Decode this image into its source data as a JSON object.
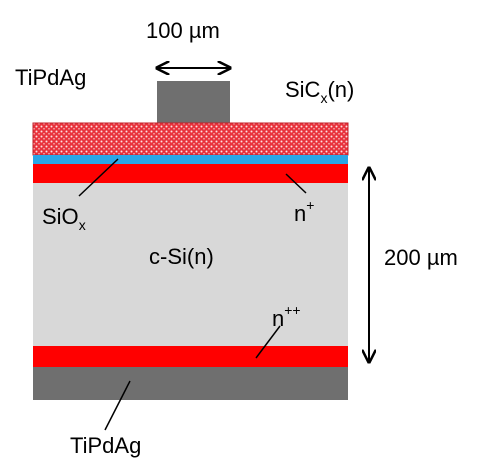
{
  "labels": {
    "top_contact": "TiPdAg",
    "contact_width": "100 µm",
    "sic_base": "SiC",
    "sic_sub": "x",
    "sic_suffix": "(n)",
    "siox_base": "SiO",
    "siox_sub": "x",
    "n_plus_base": "n",
    "n_plus_sup": "+",
    "substrate": "c-Si(n)",
    "thickness": "200 µm",
    "n_plusplus_base": "n",
    "n_plusplus_sup": "++",
    "bottom_contact": "TiPdAg"
  },
  "colors": {
    "metal": "#6f6f6f",
    "sic": "#e8323c",
    "siox": "#2aa7e6",
    "doped": "#ff0000",
    "silicon": "#d8d8d8"
  }
}
